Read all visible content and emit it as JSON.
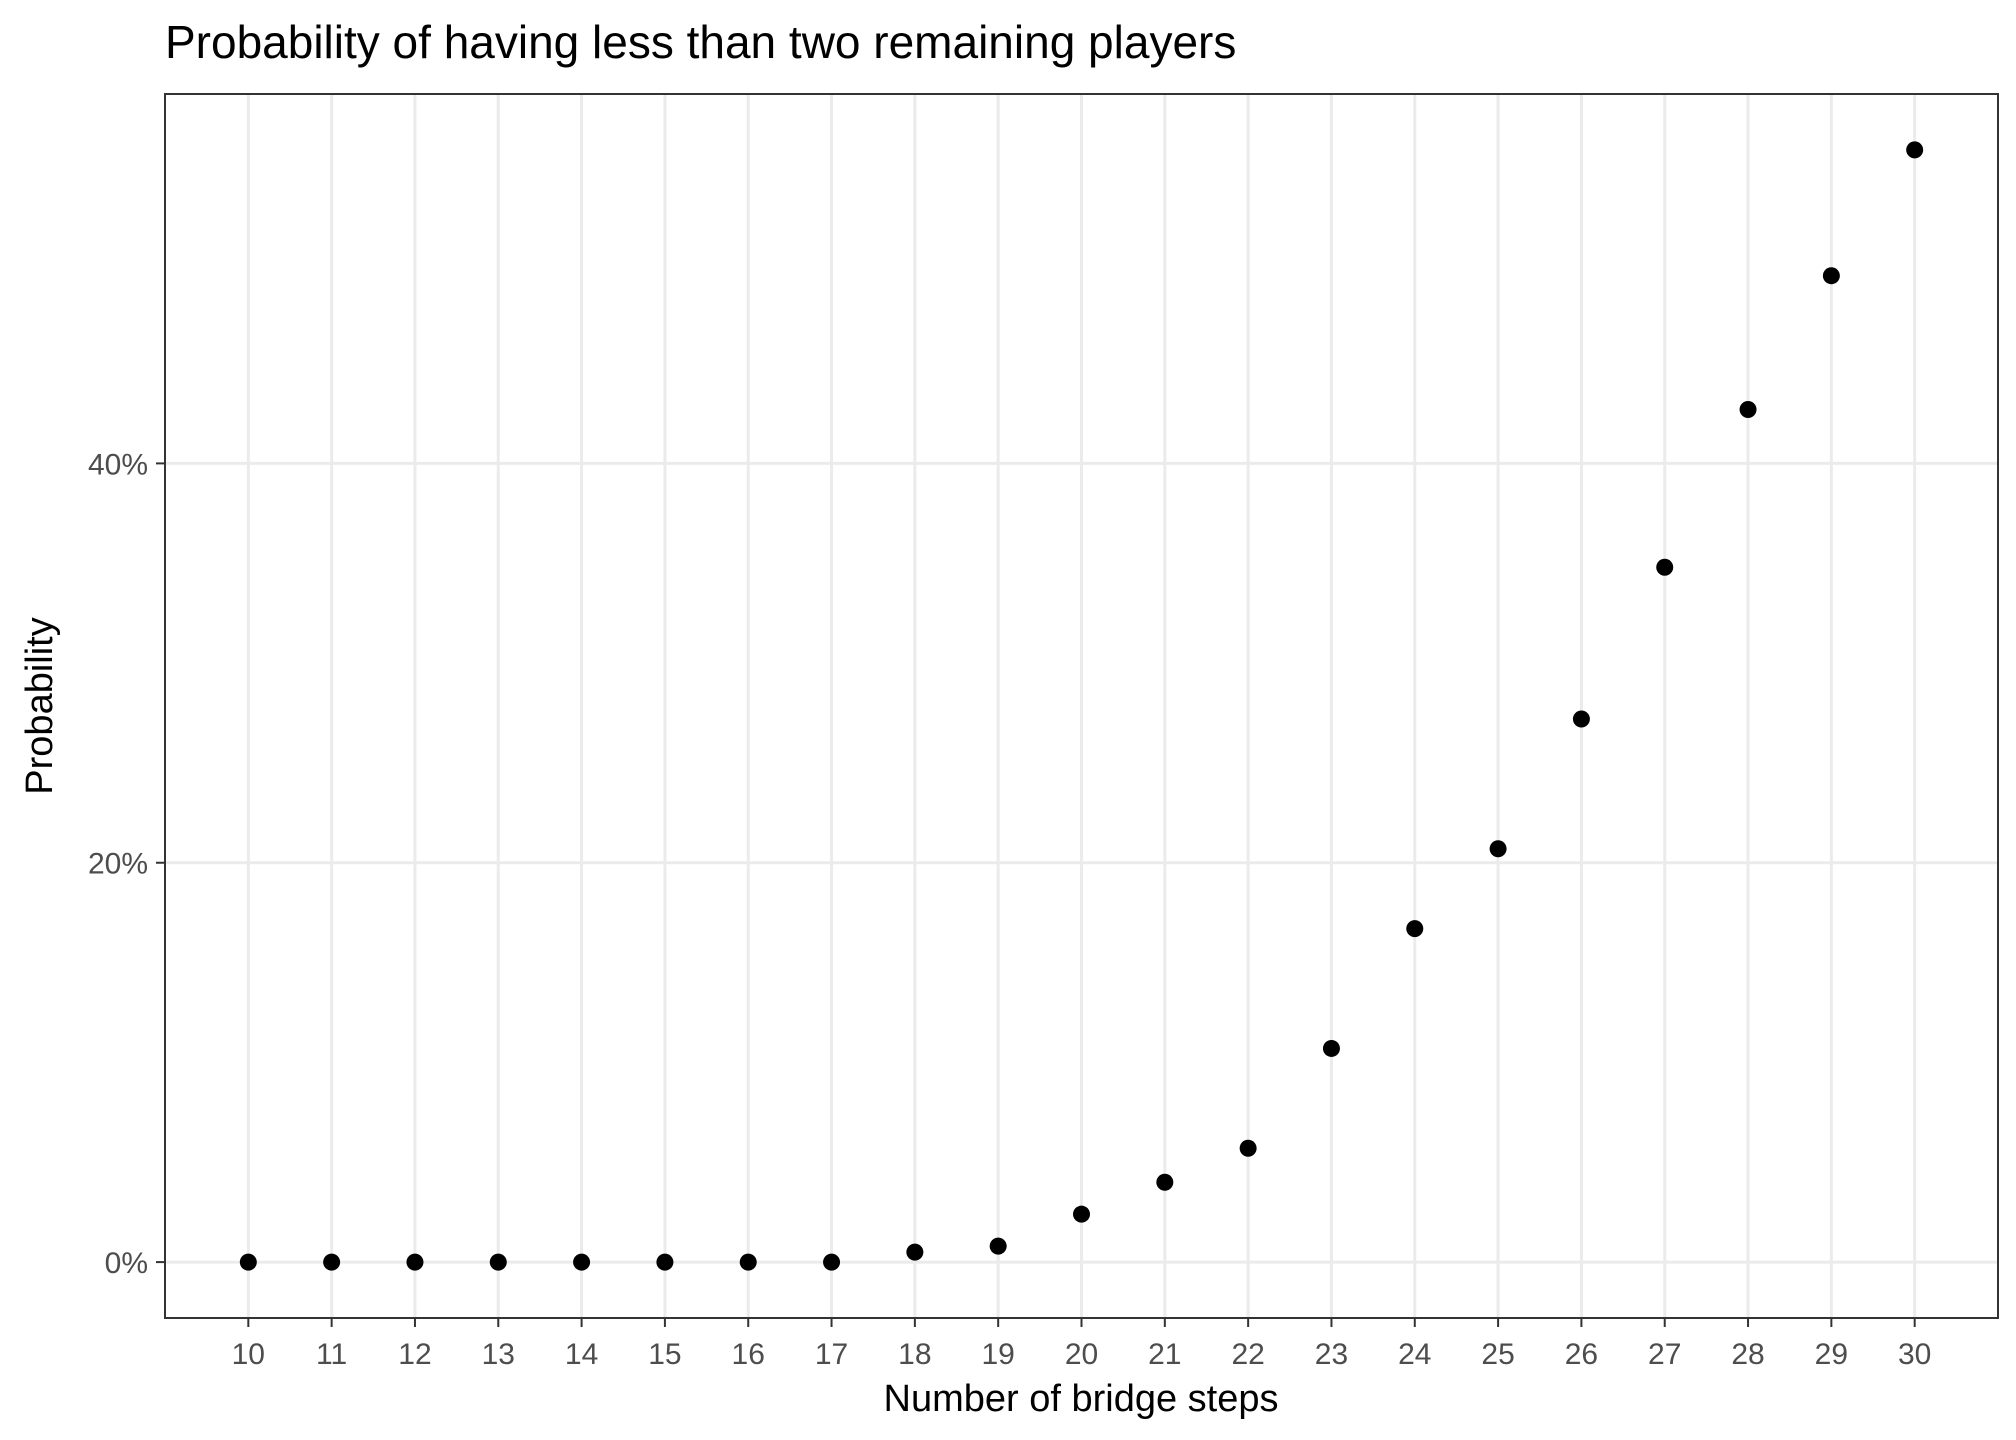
{
  "chart_data": {
    "type": "scatter",
    "title": "Probability of having less than two remaining players",
    "xlabel": "Number of bridge steps",
    "ylabel": "Probability",
    "x": [
      10,
      11,
      12,
      13,
      14,
      15,
      16,
      17,
      18,
      19,
      20,
      21,
      22,
      23,
      24,
      25,
      26,
      27,
      28,
      29,
      30
    ],
    "y": [
      0.0,
      0.0,
      0.0,
      0.0,
      0.0,
      0.0,
      0.0,
      0.0,
      0.005,
      0.008,
      0.024,
      0.04,
      0.057,
      0.107,
      0.167,
      0.207,
      0.272,
      0.348,
      0.427,
      0.494,
      0.557
    ],
    "x_ticks": [
      "10",
      "11",
      "12",
      "13",
      "14",
      "15",
      "16",
      "17",
      "18",
      "19",
      "20",
      "21",
      "22",
      "23",
      "24",
      "25",
      "26",
      "27",
      "28",
      "29",
      "30"
    ],
    "y_ticks": [
      {
        "value": 0,
        "label": "0%"
      },
      {
        "value": 0.2,
        "label": "20%"
      },
      {
        "value": 0.4,
        "label": "40%"
      }
    ],
    "xlim": [
      9,
      31
    ],
    "ylim": [
      -0.028,
      0.585
    ],
    "grid": true,
    "legend": "none",
    "colors": {
      "point": "#000000",
      "grid": "#ebebeb",
      "border": "#333333",
      "tick_text": "#4d4d4d"
    }
  }
}
